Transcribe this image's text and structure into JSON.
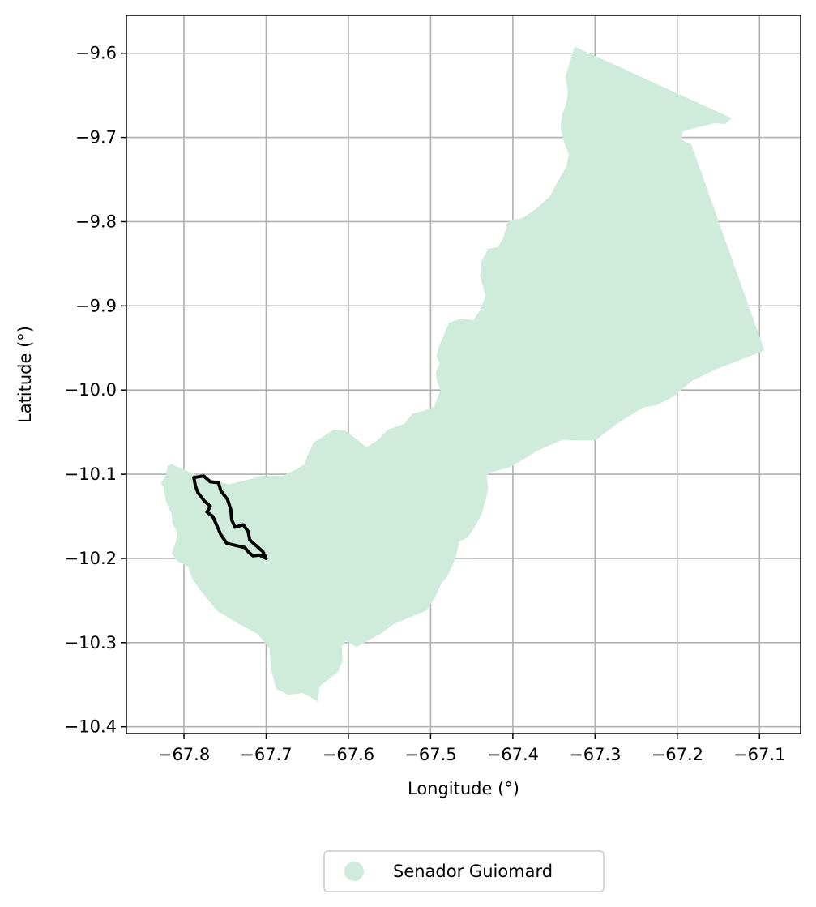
{
  "chart_data": {
    "type": "map",
    "xlabel": "Longitude (°)",
    "ylabel": "Latitude (°)",
    "xlim": [
      -67.87,
      -67.05
    ],
    "ylim": [
      -10.408,
      -9.555
    ],
    "x_ticks": [
      -67.8,
      -67.7,
      -67.6,
      -67.5,
      -67.4,
      -67.3,
      -67.2,
      -67.1
    ],
    "x_tick_labels": [
      "−67.8",
      "−67.7",
      "−67.6",
      "−67.5",
      "−67.4",
      "−67.3",
      "−67.2",
      "−67.1"
    ],
    "y_ticks": [
      -9.6,
      -9.7,
      -9.8,
      -9.9,
      -10.0,
      -10.1,
      -10.2,
      -10.3,
      -10.4
    ],
    "y_tick_labels": [
      "−9.6",
      "−9.7",
      "−9.8",
      "−9.9",
      "−10.0",
      "−10.1",
      "−10.2",
      "−10.3",
      "−10.4"
    ],
    "grid": true,
    "legend_position": "bottom-center",
    "legend": [
      {
        "label": "Senador Guiomard",
        "color": "#cfebdc"
      }
    ],
    "colors": {
      "region_fill": "#cfebdc",
      "outline": "#000000",
      "grid": "#b0b0b0"
    },
    "region_polygon": [
      [
        -67.325,
        -9.592
      ],
      [
        -67.134,
        -9.677
      ],
      [
        -67.142,
        -9.684
      ],
      [
        -67.155,
        -9.683
      ],
      [
        -67.163,
        -9.685
      ],
      [
        -67.175,
        -9.688
      ],
      [
        -67.184,
        -9.69
      ],
      [
        -67.193,
        -9.693
      ],
      [
        -67.195,
        -9.702
      ],
      [
        -67.191,
        -9.705
      ],
      [
        -67.183,
        -9.708
      ],
      [
        -67.094,
        -9.953
      ],
      [
        -67.152,
        -9.975
      ],
      [
        -67.182,
        -9.989
      ],
      [
        -67.205,
        -10.008
      ],
      [
        -67.225,
        -10.018
      ],
      [
        -67.242,
        -10.021
      ],
      [
        -67.272,
        -10.039
      ],
      [
        -67.3,
        -10.06
      ],
      [
        -67.32,
        -10.06
      ],
      [
        -67.34,
        -10.059
      ],
      [
        -67.37,
        -10.072
      ],
      [
        -67.404,
        -10.092
      ],
      [
        -67.428,
        -10.098
      ],
      [
        -67.432,
        -10.102
      ],
      [
        -67.43,
        -10.115
      ],
      [
        -67.432,
        -10.127
      ],
      [
        -67.438,
        -10.148
      ],
      [
        -67.448,
        -10.165
      ],
      [
        -67.455,
        -10.175
      ],
      [
        -67.465,
        -10.18
      ],
      [
        -67.47,
        -10.2
      ],
      [
        -67.48,
        -10.222
      ],
      [
        -67.487,
        -10.23
      ],
      [
        -67.494,
        -10.245
      ],
      [
        -67.505,
        -10.262
      ],
      [
        -67.525,
        -10.27
      ],
      [
        -67.545,
        -10.278
      ],
      [
        -67.56,
        -10.289
      ],
      [
        -67.59,
        -10.305
      ],
      [
        -67.603,
        -10.298
      ],
      [
        -67.608,
        -10.305
      ],
      [
        -67.607,
        -10.322
      ],
      [
        -67.613,
        -10.335
      ],
      [
        -67.622,
        -10.342
      ],
      [
        -67.635,
        -10.352
      ],
      [
        -67.637,
        -10.37
      ],
      [
        -67.655,
        -10.36
      ],
      [
        -67.673,
        -10.362
      ],
      [
        -67.688,
        -10.355
      ],
      [
        -67.694,
        -10.332
      ],
      [
        -67.696,
        -10.307
      ],
      [
        -67.71,
        -10.29
      ],
      [
        -67.733,
        -10.278
      ],
      [
        -67.76,
        -10.262
      ],
      [
        -67.78,
        -10.238
      ],
      [
        -67.79,
        -10.224
      ],
      [
        -67.795,
        -10.21
      ],
      [
        -67.808,
        -10.203
      ],
      [
        -67.815,
        -10.194
      ],
      [
        -67.81,
        -10.18
      ],
      [
        -67.808,
        -10.17
      ],
      [
        -67.814,
        -10.158
      ],
      [
        -67.815,
        -10.148
      ],
      [
        -67.822,
        -10.132
      ],
      [
        -67.825,
        -10.115
      ],
      [
        -67.828,
        -10.11
      ],
      [
        -67.822,
        -10.102
      ],
      [
        -67.82,
        -10.09
      ],
      [
        -67.815,
        -10.088
      ],
      [
        -67.782,
        -10.102
      ],
      [
        -67.745,
        -10.112
      ],
      [
        -67.72,
        -10.106
      ],
      [
        -67.705,
        -10.102
      ],
      [
        -67.694,
        -10.102
      ],
      [
        -67.68,
        -10.102
      ],
      [
        -67.665,
        -10.095
      ],
      [
        -67.653,
        -10.088
      ],
      [
        -67.65,
        -10.078
      ],
      [
        -67.642,
        -10.062
      ],
      [
        -67.63,
        -10.055
      ],
      [
        -67.618,
        -10.047
      ],
      [
        -67.604,
        -10.048
      ],
      [
        -67.592,
        -10.057
      ],
      [
        -67.578,
        -10.068
      ],
      [
        -67.565,
        -10.06
      ],
      [
        -67.552,
        -10.047
      ],
      [
        -67.532,
        -10.04
      ],
      [
        -67.522,
        -10.028
      ],
      [
        -67.51,
        -10.025
      ],
      [
        -67.496,
        -10.02
      ],
      [
        -67.488,
        -10.0
      ],
      [
        -67.492,
        -9.99
      ],
      [
        -67.494,
        -9.98
      ],
      [
        -67.489,
        -9.968
      ],
      [
        -67.493,
        -9.96
      ],
      [
        -67.49,
        -9.948
      ],
      [
        -67.484,
        -9.935
      ],
      [
        -67.478,
        -9.92
      ],
      [
        -67.463,
        -9.915
      ],
      [
        -67.448,
        -9.917
      ],
      [
        -67.44,
        -9.905
      ],
      [
        -67.433,
        -9.888
      ],
      [
        -67.437,
        -9.875
      ],
      [
        -67.44,
        -9.865
      ],
      [
        -67.438,
        -9.847
      ],
      [
        -67.43,
        -9.832
      ],
      [
        -67.418,
        -9.83
      ],
      [
        -67.412,
        -9.82
      ],
      [
        -67.406,
        -9.8
      ],
      [
        -67.387,
        -9.795
      ],
      [
        -67.372,
        -9.785
      ],
      [
        -67.355,
        -9.77
      ],
      [
        -67.343,
        -9.748
      ],
      [
        -67.335,
        -9.735
      ],
      [
        -67.332,
        -9.72
      ],
      [
        -67.338,
        -9.705
      ],
      [
        -67.342,
        -9.688
      ],
      [
        -67.34,
        -9.672
      ],
      [
        -67.335,
        -9.66
      ],
      [
        -67.333,
        -9.645
      ],
      [
        -67.336,
        -9.628
      ]
    ],
    "outline_polygon": [
      [
        -67.788,
        -10.104
      ],
      [
        -67.776,
        -10.102
      ],
      [
        -67.768,
        -10.109
      ],
      [
        -67.758,
        -10.11
      ],
      [
        -67.755,
        -10.12
      ],
      [
        -67.747,
        -10.13
      ],
      [
        -67.743,
        -10.142
      ],
      [
        -67.742,
        -10.154
      ],
      [
        -67.738,
        -10.163
      ],
      [
        -67.728,
        -10.16
      ],
      [
        -67.722,
        -10.168
      ],
      [
        -67.72,
        -10.178
      ],
      [
        -67.712,
        -10.185
      ],
      [
        -67.704,
        -10.192
      ],
      [
        -67.7,
        -10.2
      ],
      [
        -67.708,
        -10.196
      ],
      [
        -67.716,
        -10.197
      ],
      [
        -67.721,
        -10.193
      ],
      [
        -67.726,
        -10.187
      ],
      [
        -67.735,
        -10.185
      ],
      [
        -67.748,
        -10.182
      ],
      [
        -67.755,
        -10.172
      ],
      [
        -67.76,
        -10.161
      ],
      [
        -67.765,
        -10.15
      ],
      [
        -67.772,
        -10.145
      ],
      [
        -67.768,
        -10.138
      ],
      [
        -67.775,
        -10.132
      ],
      [
        -67.783,
        -10.122
      ],
      [
        -67.786,
        -10.114
      ]
    ]
  }
}
